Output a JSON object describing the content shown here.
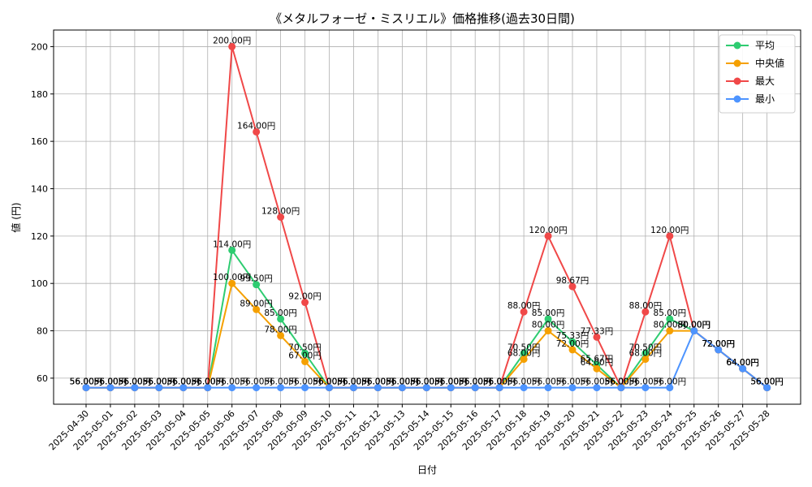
{
  "chart_data": {
    "type": "line",
    "title": "《メタルフォーゼ・ミスリエル》価格推移(過去30日間)",
    "xlabel": "日付",
    "ylabel": "値 (円)",
    "ylim": [
      49,
      207
    ],
    "yticks": [
      60,
      80,
      100,
      120,
      140,
      160,
      180,
      200
    ],
    "grid": true,
    "legend_position": "top-right",
    "label_suffix": "円",
    "categories": [
      "2025-04-30",
      "2025-05-01",
      "2025-05-02",
      "2025-05-03",
      "2025-05-04",
      "2025-05-05",
      "2025-05-06",
      "2025-05-07",
      "2025-05-08",
      "2025-05-09",
      "2025-05-10",
      "2025-05-11",
      "2025-05-12",
      "2025-05-13",
      "2025-05-14",
      "2025-05-15",
      "2025-05-16",
      "2025-05-17",
      "2025-05-18",
      "2025-05-19",
      "2025-05-20",
      "2025-05-21",
      "2025-05-22",
      "2025-05-23",
      "2025-05-24",
      "2025-05-25",
      "2025-05-26",
      "2025-05-27",
      "2025-05-28"
    ],
    "series": [
      {
        "name": "平均",
        "color": "#2ecc71",
        "values": [
          56,
          56,
          56,
          56,
          56,
          56,
          114,
          99.5,
          85,
          70.5,
          56,
          56,
          56,
          56,
          56,
          56,
          56,
          56,
          70.5,
          85,
          75.33,
          65.67,
          56,
          70.5,
          85,
          80,
          72,
          64,
          56
        ]
      },
      {
        "name": "中央値",
        "color": "#f5a000",
        "values": [
          56,
          56,
          56,
          56,
          56,
          56,
          100,
          89,
          78,
          67,
          56,
          56,
          56,
          56,
          56,
          56,
          56,
          56,
          68,
          80,
          72,
          64,
          56,
          68,
          80,
          80,
          72,
          64,
          56
        ]
      },
      {
        "name": "最大",
        "color": "#f04848",
        "values": [
          56,
          56,
          56,
          56,
          56,
          56,
          200,
          164,
          128,
          92,
          56,
          56,
          56,
          56,
          56,
          56,
          56,
          56,
          88,
          120,
          98.67,
          77.33,
          56,
          88,
          120,
          80,
          72,
          64,
          56
        ]
      },
      {
        "name": "最小",
        "color": "#4d94ff",
        "values": [
          56,
          56,
          56,
          56,
          56,
          56,
          56,
          56,
          56,
          56,
          56,
          56,
          56,
          56,
          56,
          56,
          56,
          56,
          56,
          56,
          56,
          56,
          56,
          56,
          56,
          80,
          72,
          64,
          56
        ]
      }
    ]
  }
}
